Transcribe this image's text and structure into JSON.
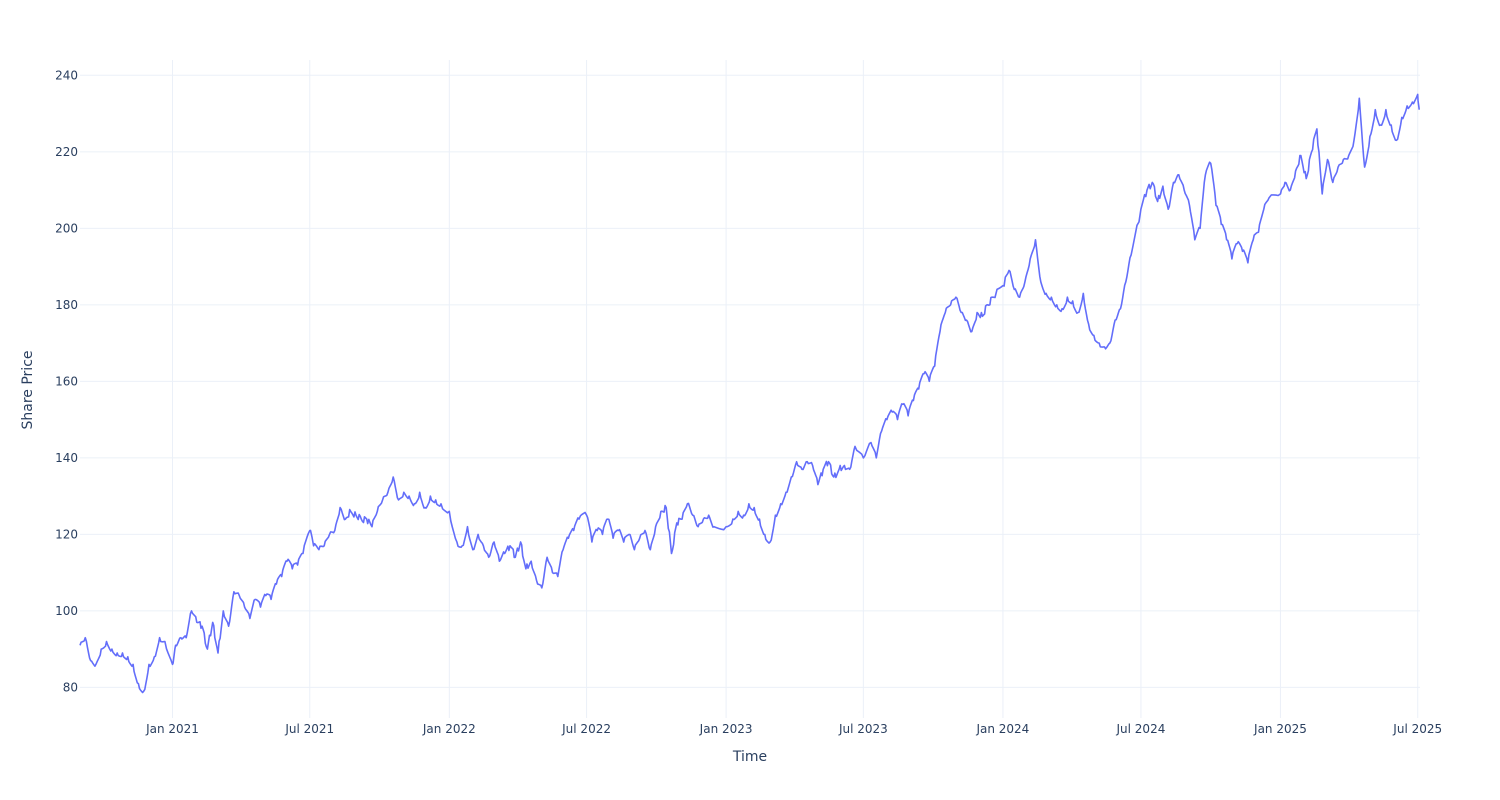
{
  "chart_data": {
    "type": "line",
    "xlabel": "Time",
    "ylabel": "Share Price",
    "xlim": [
      "2020-09-01",
      "2025-07-04"
    ],
    "ylim": [
      72,
      244
    ],
    "x_ticks": [
      {
        "date": "2021-01-01",
        "label": "Jan 2021"
      },
      {
        "date": "2021-07-01",
        "label": "Jul 2021"
      },
      {
        "date": "2022-01-01",
        "label": "Jan 2022"
      },
      {
        "date": "2022-07-01",
        "label": "Jul 2022"
      },
      {
        "date": "2023-01-01",
        "label": "Jan 2023"
      },
      {
        "date": "2023-07-01",
        "label": "Jul 2023"
      },
      {
        "date": "2024-01-01",
        "label": "Jan 2024"
      },
      {
        "date": "2024-07-01",
        "label": "Jul 2024"
      },
      {
        "date": "2025-01-01",
        "label": "Jan 2025"
      },
      {
        "date": "2025-07-01",
        "label": "Jul 2025"
      }
    ],
    "y_ticks": [
      80,
      100,
      120,
      140,
      160,
      180,
      200,
      220,
      240
    ],
    "grid": true,
    "legend": "none",
    "line_color": "#636efa",
    "series": [
      {
        "x": [
          "2020-09-01",
          "2020-09-08",
          "2020-09-15",
          "2020-09-22",
          "2020-09-29",
          "2020-10-06",
          "2020-10-13",
          "2020-10-20",
          "2020-10-27",
          "2020-11-03",
          "2020-11-10",
          "2020-11-17",
          "2020-11-24",
          "2020-12-01",
          "2020-12-08",
          "2020-12-15",
          "2020-12-22",
          "2021-01-01",
          "2021-01-05",
          "2021-01-12",
          "2021-01-19",
          "2021-01-26",
          "2021-02-02",
          "2021-02-09",
          "2021-02-16",
          "2021-02-23",
          "2021-03-02",
          "2021-03-09",
          "2021-03-16",
          "2021-03-23",
          "2021-03-30",
          "2021-04-06",
          "2021-04-13",
          "2021-04-20",
          "2021-04-27",
          "2021-05-04",
          "2021-05-11",
          "2021-05-18",
          "2021-05-25",
          "2021-06-01",
          "2021-06-08",
          "2021-06-15",
          "2021-06-22",
          "2021-07-01",
          "2021-07-06",
          "2021-07-13",
          "2021-07-20",
          "2021-07-27",
          "2021-08-03",
          "2021-08-10",
          "2021-08-17",
          "2021-08-24",
          "2021-08-31",
          "2021-09-07",
          "2021-09-14",
          "2021-09-21",
          "2021-09-28",
          "2021-10-05",
          "2021-10-12",
          "2021-10-19",
          "2021-10-26",
          "2021-11-02",
          "2021-11-09",
          "2021-11-16",
          "2021-11-23",
          "2021-11-30",
          "2021-12-07",
          "2021-12-14",
          "2021-12-21",
          "2022-01-01",
          "2022-01-11",
          "2022-01-18",
          "2022-01-25",
          "2022-02-01",
          "2022-02-08",
          "2022-02-15",
          "2022-02-22",
          "2022-03-01",
          "2022-03-08",
          "2022-03-15",
          "2022-03-22",
          "2022-03-29",
          "2022-04-05",
          "2022-04-12",
          "2022-04-19",
          "2022-04-26",
          "2022-05-03",
          "2022-05-10",
          "2022-05-17",
          "2022-05-24",
          "2022-05-31",
          "2022-06-07",
          "2022-06-14",
          "2022-06-21",
          "2022-07-01",
          "2022-07-08",
          "2022-07-15",
          "2022-07-22",
          "2022-07-29",
          "2022-08-05",
          "2022-08-12",
          "2022-08-19",
          "2022-08-26",
          "2022-09-02",
          "2022-09-09",
          "2022-09-16",
          "2022-09-23",
          "2022-09-30",
          "2022-10-07",
          "2022-10-14",
          "2022-10-21",
          "2022-10-28",
          "2022-11-04",
          "2022-11-11",
          "2022-11-18",
          "2022-11-25",
          "2022-12-02",
          "2022-12-09",
          "2022-12-16",
          "2023-01-01",
          "2023-01-10",
          "2023-01-17",
          "2023-01-24",
          "2023-01-31",
          "2023-02-07",
          "2023-02-14",
          "2023-02-21",
          "2023-02-28",
          "2023-03-07",
          "2023-03-14",
          "2023-03-21",
          "2023-03-28",
          "2023-04-04",
          "2023-04-11",
          "2023-04-18",
          "2023-04-25",
          "2023-05-02",
          "2023-05-09",
          "2023-05-16",
          "2023-05-23",
          "2023-05-30",
          "2023-06-06",
          "2023-06-13",
          "2023-06-20",
          "2023-07-01",
          "2023-07-11",
          "2023-07-18",
          "2023-07-25",
          "2023-08-01",
          "2023-08-08",
          "2023-08-15",
          "2023-08-22",
          "2023-08-29",
          "2023-09-05",
          "2023-09-12",
          "2023-09-19",
          "2023-09-26",
          "2023-10-03",
          "2023-10-10",
          "2023-10-17",
          "2023-10-24",
          "2023-10-31",
          "2023-11-07",
          "2023-11-14",
          "2023-11-21",
          "2023-11-28",
          "2023-12-05",
          "2023-12-12",
          "2023-12-19",
          "2024-01-01",
          "2024-01-09",
          "2024-01-16",
          "2024-01-23",
          "2024-01-30",
          "2024-02-06",
          "2024-02-13",
          "2024-02-20",
          "2024-02-27",
          "2024-03-05",
          "2024-03-12",
          "2024-03-19",
          "2024-03-26",
          "2024-04-02",
          "2024-04-09",
          "2024-04-16",
          "2024-04-23",
          "2024-04-30",
          "2024-05-07",
          "2024-05-14",
          "2024-05-21",
          "2024-05-28",
          "2024-06-04",
          "2024-06-11",
          "2024-06-18",
          "2024-07-01",
          "2024-07-09",
          "2024-07-16",
          "2024-07-23",
          "2024-07-30",
          "2024-08-06",
          "2024-08-13",
          "2024-08-20",
          "2024-08-27",
          "2024-09-03",
          "2024-09-10",
          "2024-09-17",
          "2024-09-24",
          "2024-10-01",
          "2024-10-08",
          "2024-10-15",
          "2024-10-22",
          "2024-10-29",
          "2024-11-05",
          "2024-11-12",
          "2024-11-19",
          "2024-11-26",
          "2024-12-03",
          "2024-12-10",
          "2024-12-17",
          "2025-01-01",
          "2025-01-07",
          "2025-01-14",
          "2025-01-21",
          "2025-01-28",
          "2025-02-04",
          "2025-02-11",
          "2025-02-18",
          "2025-02-25",
          "2025-03-04",
          "2025-03-11",
          "2025-03-18",
          "2025-03-25",
          "2025-04-01",
          "2025-04-08",
          "2025-04-15",
          "2025-04-22",
          "2025-04-29",
          "2025-05-06",
          "2025-05-13",
          "2025-05-20",
          "2025-05-27",
          "2025-06-03",
          "2025-06-10",
          "2025-06-17",
          "2025-06-24",
          "2025-07-01",
          "2025-07-03"
        ],
        "values": [
          91,
          93,
          87,
          86,
          90,
          92,
          90,
          89,
          89,
          88,
          86,
          81,
          79,
          86,
          88,
          93,
          92,
          86,
          91,
          93,
          93,
          100,
          97,
          96,
          90,
          97,
          89,
          100,
          96,
          105,
          104,
          101,
          98,
          103,
          101,
          104,
          103,
          107,
          109,
          113,
          111,
          112,
          115,
          121,
          117,
          116,
          117,
          120,
          121,
          127,
          124,
          126,
          125,
          124,
          124,
          122,
          126,
          129,
          131,
          135,
          129,
          131,
          130,
          128,
          131,
          127,
          130,
          129,
          128,
          126,
          118,
          117,
          122,
          116,
          120,
          117,
          114,
          118,
          113,
          115,
          117,
          114,
          118,
          111,
          113,
          108,
          106,
          114,
          110,
          109,
          116,
          119,
          121,
          124,
          125,
          118,
          121,
          120,
          124,
          119,
          121,
          118,
          120,
          116,
          119,
          121,
          116,
          122,
          126,
          127,
          115,
          123,
          124,
          128,
          125,
          122,
          124,
          125,
          122,
          122,
          124,
          126,
          125,
          128,
          127,
          124,
          120,
          118,
          125,
          128,
          131,
          135,
          139,
          137,
          139,
          138,
          133,
          137,
          139,
          135,
          137,
          138,
          137,
          143,
          140,
          144,
          140,
          147,
          150,
          152,
          150,
          154,
          151,
          155,
          158,
          162,
          160,
          164,
          173,
          178,
          180,
          182,
          178,
          176,
          173,
          178,
          177,
          180,
          182,
          185,
          189,
          184,
          182,
          186,
          192,
          197,
          186,
          183,
          182,
          180,
          179,
          182,
          181,
          178,
          183,
          175,
          172,
          170,
          169,
          170,
          176,
          179,
          186,
          193,
          205,
          210,
          212,
          207,
          211,
          205,
          212,
          214,
          210,
          206,
          197,
          200,
          214,
          217,
          206,
          201,
          197,
          192,
          196,
          194,
          191,
          197,
          199,
          205,
          208,
          209,
          212,
          210,
          215,
          219,
          213,
          220,
          226,
          209,
          218,
          212,
          216,
          218,
          219,
          223,
          234,
          216,
          224,
          231,
          227,
          231,
          227,
          223,
          229,
          232,
          233,
          235,
          231
        ]
      }
    ]
  }
}
